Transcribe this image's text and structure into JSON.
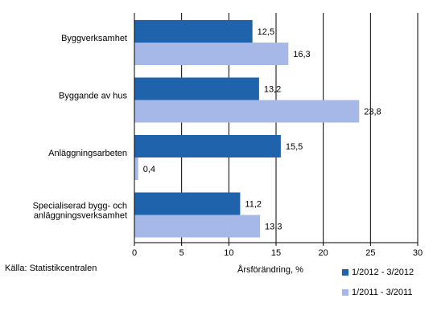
{
  "chart_data": {
    "type": "bar",
    "orientation": "horizontal",
    "categories": [
      [
        "Byggverksamhet"
      ],
      [
        "Byggande av hus"
      ],
      [
        "Anläggningsarbeten"
      ],
      [
        "Specialiserad bygg- och",
        "anläggningsverksamhet"
      ]
    ],
    "series": [
      {
        "name": "1/2012 - 3/2012",
        "color": "#1f63ad",
        "values": [
          12.5,
          13.2,
          15.5,
          11.2
        ],
        "labels": [
          "12,5",
          "13,2",
          "15,5",
          "11,2"
        ]
      },
      {
        "name": "1/2011 - 3/2011",
        "color": "#a6b8e8",
        "values": [
          16.3,
          23.8,
          0.4,
          13.3
        ],
        "labels": [
          "16,3",
          "23,8",
          "0,4",
          "13,3"
        ]
      }
    ],
    "xlim": [
      0,
      30
    ],
    "xticks": [
      0,
      5,
      10,
      15,
      20,
      25,
      30
    ],
    "xlabel": "Årsförändring, %",
    "grid": "vertical",
    "legend": "bottom-right"
  },
  "source": "Källa: Statistikcentralen"
}
